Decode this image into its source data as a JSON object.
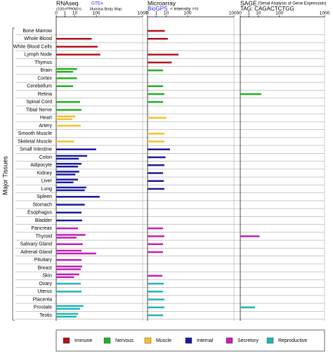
{
  "y_axis_label": "Major Tissues",
  "categories": [
    "Bone Marrow",
    "Whole Blood",
    "White Blood Cells",
    "Lymph Node",
    "Thymus",
    "Brain",
    "Cortex",
    "Cerebellum",
    "Retina",
    "Spinal Cord",
    "Tibial Nerve",
    "Heart",
    "Artery",
    "Smooth Muscle",
    "Skeletal Muscle",
    "Small Intestine",
    "Colon",
    "Adipocyte",
    "Kidney",
    "Liver",
    "Lung",
    "Spleen",
    "Stomach",
    "Esophagus",
    "Bladder",
    "Pancreas",
    "Thyroid",
    "Salivary Gland",
    "Adrenal Gland",
    "Pituitary",
    "Breast",
    "Skin",
    "Ovary",
    "Uterus",
    "Placenta",
    "Prostate",
    "Testis"
  ],
  "category_colors": [
    "#b0141c",
    "#b0141c",
    "#b0141c",
    "#b0141c",
    "#b0141c",
    "#22b022",
    "#22b022",
    "#22b022",
    "#22b022",
    "#22b022",
    "#22b022",
    "#f4c02c",
    "#f4c02c",
    "#f4c02c",
    "#f4c02c",
    "#1a1a9a",
    "#1a1a9a",
    "#1a1a9a",
    "#1a1a9a",
    "#1a1a9a",
    "#1a1a9a",
    "#1a1a9a",
    "#1a1a9a",
    "#1a1a9a",
    "#1a1a9a",
    "#c020b4",
    "#c020b4",
    "#c020b4",
    "#c020b4",
    "#c020b4",
    "#c020b4",
    "#c020b4",
    "#22b4b4",
    "#22b4b4",
    "#22b4b4",
    "#22b4b4",
    "#22b4b4"
  ],
  "legend": [
    {
      "name": "Immune",
      "color": "#b0141c"
    },
    {
      "name": "Nervous",
      "color": "#22b022"
    },
    {
      "name": "Muscle",
      "color": "#f4c02c"
    },
    {
      "name": "Internal",
      "color": "#1a1a9a"
    },
    {
      "name": "Secretory",
      "color": "#c020b4"
    },
    {
      "name": "Reproductive",
      "color": "#22b4b4"
    }
  ],
  "chart_data": [
    {
      "type": "bar",
      "orientation": "horizontal",
      "title": "RNAseq",
      "subtitle": "(100×FPKM)⅓",
      "xlim": [
        0,
        1000
      ],
      "xticks": [
        0,
        1,
        10,
        100,
        1000
      ],
      "x_scale": "cube root",
      "series": [
        {
          "name": "GTEx",
          "values": [
            null,
            69,
            null,
            null,
            null,
            14,
            14,
            7.4,
            null,
            21,
            25,
            11,
            23,
            null,
            9,
            99,
            46,
            25,
            19,
            16,
            42,
            127,
            36,
            25,
            27,
            16,
            39,
            29,
            25,
            25,
            27,
            19,
            23,
            25,
            null,
            31,
            16
          ]
        },
        {
          "name": "Illumina Body Map",
          "values": [
            null,
            null,
            110,
            133,
            null,
            7.4,
            null,
            null,
            null,
            null,
            null,
            6.6,
            null,
            null,
            null,
            null,
            18,
            16,
            11,
            8,
            36,
            null,
            null,
            null,
            null,
            null,
            13,
            null,
            99,
            null,
            23,
            9,
            null,
            null,
            null,
            21,
            13
          ]
        }
      ]
    },
    {
      "type": "bar",
      "orientation": "horizontal",
      "title": "Microarray",
      "subtitle": "< intensity >⅓",
      "xlim": [
        0,
        1000
      ],
      "xticks": [
        0,
        1,
        10,
        100,
        1000
      ],
      "x_scale": "cube root",
      "series": [
        {
          "name": "BioGPS",
          "values": [
            8,
            13,
            null,
            46,
            22,
            5.8,
            null,
            5.8,
            7.4,
            5.8,
            null,
            10.6,
            null,
            7.4,
            7.4,
            17.6,
            9,
            7.4,
            5.8,
            6.7,
            7.4,
            null,
            null,
            null,
            null,
            5.8,
            7.4,
            5.8,
            5.8,
            null,
            null,
            5,
            6.7,
            5.8,
            7.4,
            7.4,
            5.8
          ]
        }
      ]
    },
    {
      "type": "bar",
      "orientation": "horizontal",
      "title": "SAGE",
      "subtitle": "(Serial Analysis of Gene Expression)",
      "tag": "TAG: CAGACTCTGG",
      "xlim": [
        0,
        1000
      ],
      "xticks": [
        0,
        1,
        10,
        100,
        1000
      ],
      "x_scale": "cube root",
      "series": [
        {
          "values": [
            null,
            null,
            null,
            null,
            null,
            null,
            null,
            null,
            15.6,
            null,
            null,
            null,
            null,
            null,
            null,
            null,
            null,
            null,
            null,
            null,
            null,
            null,
            null,
            null,
            null,
            null,
            12,
            null,
            null,
            null,
            null,
            null,
            null,
            null,
            null,
            5.4,
            null
          ]
        }
      ]
    }
  ]
}
